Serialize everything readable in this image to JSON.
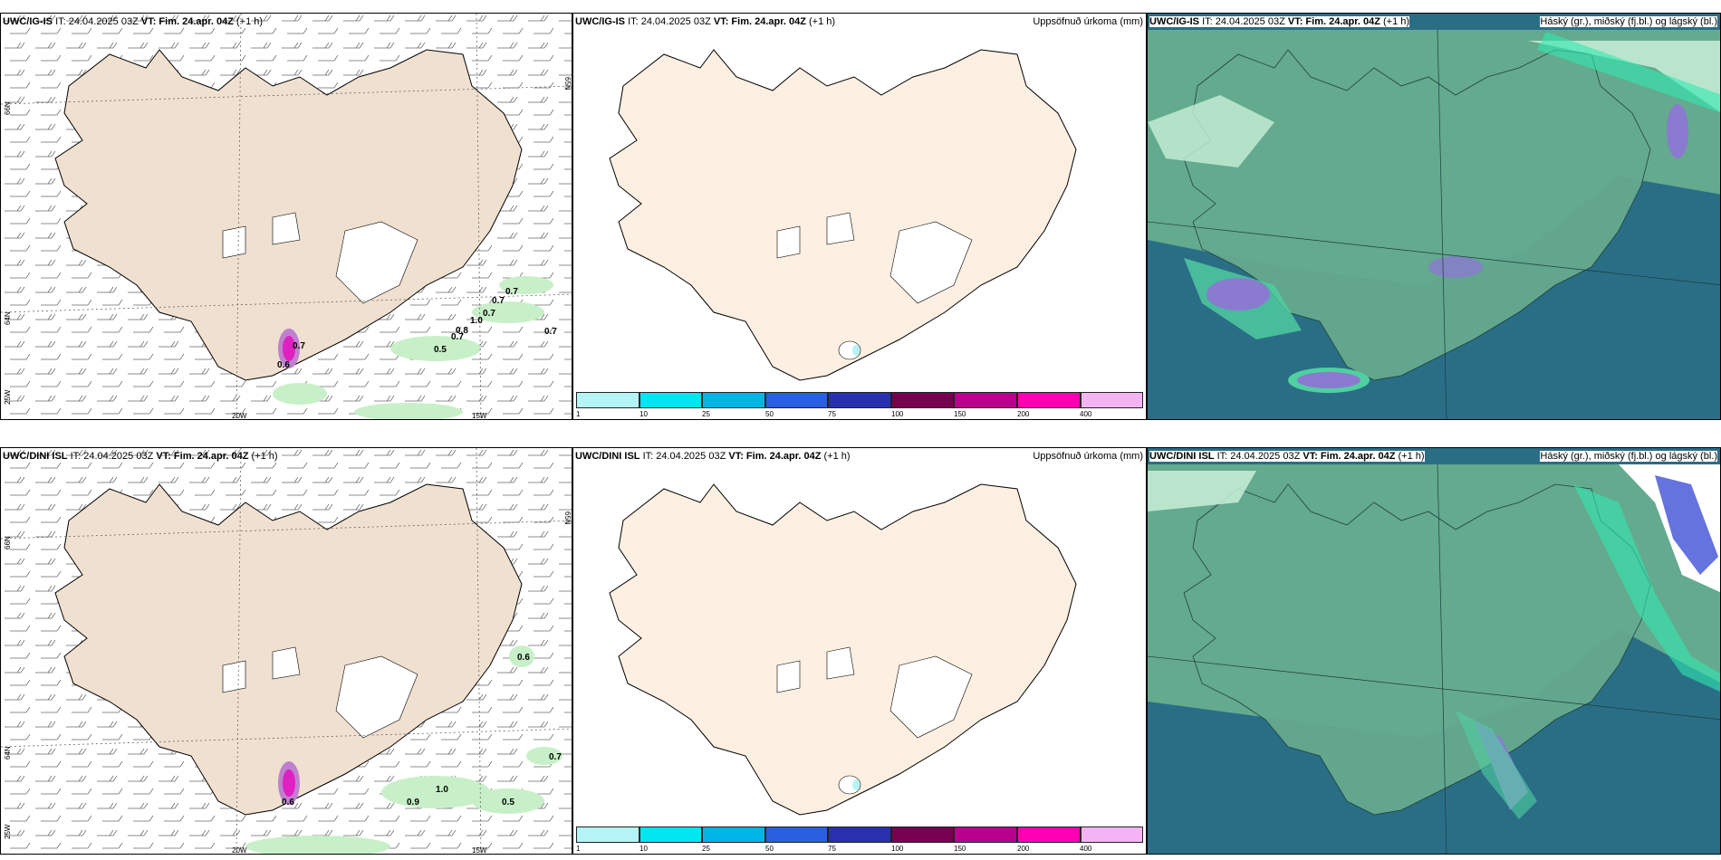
{
  "rows": [
    {
      "model": "UWC/IG-IS",
      "it_label": "IT: 24.04.2025 03Z",
      "vt_label": "VT: Fim. 24.apr. 04Z",
      "lead": "(+1 h)",
      "wind_values": [
        "0.7",
        "0.7",
        "0.7",
        "1.0",
        "0.8",
        "0.7",
        "0.5",
        "0.7",
        "0.7",
        "0.6"
      ],
      "lat_labels": [
        "66N",
        "64N",
        "65N"
      ],
      "lon_labels": [
        "20W",
        "15W",
        "25W"
      ]
    },
    {
      "model": "UWC/DINI ISL",
      "it_label": "IT: 24.04.2025 03Z",
      "vt_label": "VT: Fim. 24.apr. 04Z",
      "lead": "(+1 h)",
      "wind_values": [
        "0.6",
        "0.7",
        "1.0",
        "0.9",
        "0.5",
        "0.6"
      ],
      "lat_labels": [
        "66N",
        "64N",
        "65N"
      ],
      "lon_labels": [
        "20W",
        "15W",
        "25W"
      ]
    }
  ],
  "precip_title": "Uppsöfnuð úrkoma (mm)",
  "cloud_title": "Háský (gr.), miðský (fj.bl.) og lágský (bl.)",
  "colorbar": {
    "ticks": [
      "1",
      "10",
      "25",
      "50",
      "75",
      "100",
      "150",
      "200",
      "400"
    ],
    "colors": [
      "#b4f4f6",
      "#00e6f0",
      "#00b4e6",
      "#2860e0",
      "#2830b0",
      "#780050",
      "#b8008c",
      "#ff00b4",
      "#f4b4f4"
    ]
  },
  "colors": {
    "land_wind": "#f0e0d0",
    "land_precip": "#fdf0e2",
    "ocean_cloud": "#2a6e86",
    "land_cloud": "#64aa8e",
    "green_precip": "#c8f0c8"
  }
}
